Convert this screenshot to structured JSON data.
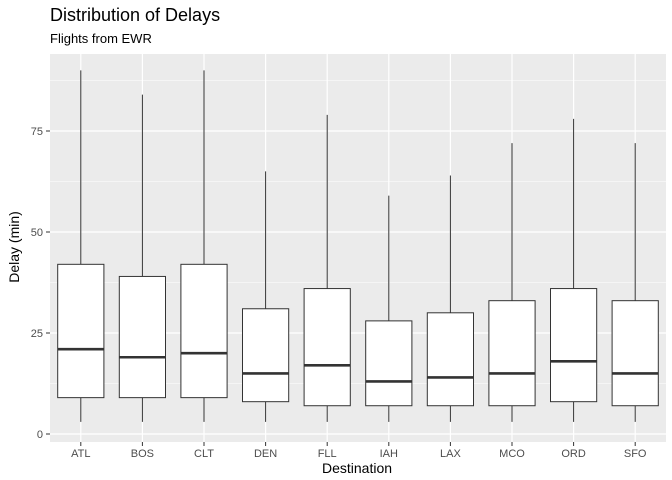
{
  "chart_data": {
    "type": "boxplot",
    "title": "Distribution of Delays",
    "subtitle": "Flights from EWR",
    "xlabel": "Destination",
    "ylabel": "Delay (min)",
    "ylim": [
      -2,
      95
    ],
    "yticks": [
      0,
      25,
      50,
      75
    ],
    "categories": [
      "ATL",
      "BOS",
      "CLT",
      "DEN",
      "FLL",
      "IAH",
      "LAX",
      "MCO",
      "ORD",
      "SFO"
    ],
    "boxes": [
      {
        "category": "ATL",
        "min": 3,
        "q1": 9,
        "median": 21,
        "q3": 42,
        "max": 90
      },
      {
        "category": "BOS",
        "min": 3,
        "q1": 9,
        "median": 19,
        "q3": 39,
        "max": 84
      },
      {
        "category": "CLT",
        "min": 3,
        "q1": 9,
        "median": 20,
        "q3": 42,
        "max": 90
      },
      {
        "category": "DEN",
        "min": 3,
        "q1": 8,
        "median": 15,
        "q3": 31,
        "max": 65
      },
      {
        "category": "FLL",
        "min": 3,
        "q1": 7,
        "median": 17,
        "q3": 36,
        "max": 79
      },
      {
        "category": "IAH",
        "min": 3,
        "q1": 7,
        "median": 13,
        "q3": 28,
        "max": 59
      },
      {
        "category": "LAX",
        "min": 3,
        "q1": 7,
        "median": 14,
        "q3": 30,
        "max": 64
      },
      {
        "category": "MCO",
        "min": 3,
        "q1": 7,
        "median": 15,
        "q3": 33,
        "max": 72
      },
      {
        "category": "ORD",
        "min": 3,
        "q1": 8,
        "median": 18,
        "q3": 36,
        "max": 78
      },
      {
        "category": "SFO",
        "min": 3,
        "q1": 7,
        "median": 15,
        "q3": 33,
        "max": 72
      }
    ],
    "grid": true,
    "legend": "none",
    "colors": {
      "panel": "#ebebeb",
      "grid": "#ffffff",
      "box_fill": "#ffffff",
      "box_line": "#333333"
    }
  }
}
